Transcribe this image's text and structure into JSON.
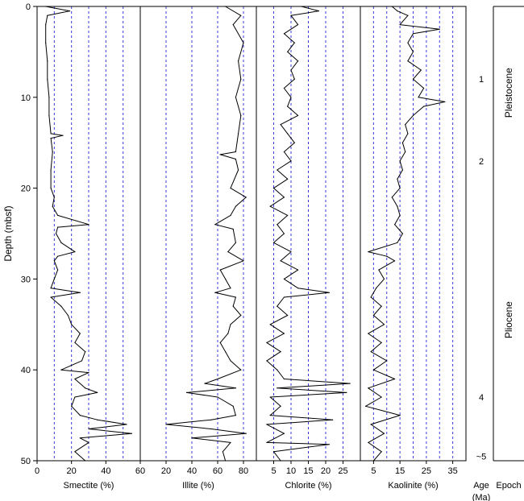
{
  "chart_data": {
    "type": "line",
    "ylabel": "Depth (mbsf)",
    "ylim": [
      50,
      0
    ],
    "yticks": [
      "0",
      "10",
      "20",
      "30",
      "40",
      "50"
    ],
    "line_color": "#000000",
    "grid_color": "#3a3adf",
    "grid_style": "dashed",
    "panels": [
      {
        "xlabel": "Smectite (%)",
        "xlim": [
          0,
          60
        ],
        "xticks": [
          "0",
          "20",
          "40",
          "60"
        ],
        "grid_x": [
          10,
          20,
          30,
          40,
          50
        ],
        "series": [
          {
            "depth": 0,
            "value": 5
          },
          {
            "depth": 0.5,
            "value": 19
          },
          {
            "depth": 1,
            "value": 6
          },
          {
            "depth": 2,
            "value": 5
          },
          {
            "depth": 4,
            "value": 5
          },
          {
            "depth": 6,
            "value": 6
          },
          {
            "depth": 8,
            "value": 6
          },
          {
            "depth": 10,
            "value": 7
          },
          {
            "depth": 12,
            "value": 7
          },
          {
            "depth": 14,
            "value": 8
          },
          {
            "depth": 14.2,
            "value": 15
          },
          {
            "depth": 14.5,
            "value": 8
          },
          {
            "depth": 16,
            "value": 9
          },
          {
            "depth": 18,
            "value": 8
          },
          {
            "depth": 20,
            "value": 8
          },
          {
            "depth": 21,
            "value": 10
          },
          {
            "depth": 22,
            "value": 9
          },
          {
            "depth": 23,
            "value": 12
          },
          {
            "depth": 24,
            "value": 30
          },
          {
            "depth": 24.3,
            "value": 12
          },
          {
            "depth": 25,
            "value": 11
          },
          {
            "depth": 26,
            "value": 14
          },
          {
            "depth": 27,
            "value": 22
          },
          {
            "depth": 27.5,
            "value": 12
          },
          {
            "depth": 28,
            "value": 10
          },
          {
            "depth": 29,
            "value": 12
          },
          {
            "depth": 30,
            "value": 10
          },
          {
            "depth": 31,
            "value": 8
          },
          {
            "depth": 31.5,
            "value": 25
          },
          {
            "depth": 32,
            "value": 8
          },
          {
            "depth": 33,
            "value": 14
          },
          {
            "depth": 34,
            "value": 18
          },
          {
            "depth": 35,
            "value": 20
          },
          {
            "depth": 36,
            "value": 25
          },
          {
            "depth": 37,
            "value": 22
          },
          {
            "depth": 38,
            "value": 28
          },
          {
            "depth": 39,
            "value": 26
          },
          {
            "depth": 40,
            "value": 14
          },
          {
            "depth": 40.3,
            "value": 30
          },
          {
            "depth": 41,
            "value": 22
          },
          {
            "depth": 42,
            "value": 28
          },
          {
            "depth": 42.5,
            "value": 35
          },
          {
            "depth": 43,
            "value": 22
          },
          {
            "depth": 44,
            "value": 20
          },
          {
            "depth": 45,
            "value": 25
          },
          {
            "depth": 45.5,
            "value": 35
          },
          {
            "depth": 46,
            "value": 52
          },
          {
            "depth": 46.5,
            "value": 30
          },
          {
            "depth": 47,
            "value": 55
          },
          {
            "depth": 47.5,
            "value": 25
          },
          {
            "depth": 48,
            "value": 30
          },
          {
            "depth": 49,
            "value": 22
          },
          {
            "depth": 50,
            "value": 28
          }
        ]
      },
      {
        "xlabel": "Illite (%)",
        "xlim": [
          0,
          90
        ],
        "xticks": [
          "20",
          "40",
          "60",
          "80"
        ],
        "grid_x": [
          20,
          40,
          60,
          80
        ],
        "series": [
          {
            "depth": 0,
            "value": 66
          },
          {
            "depth": 1,
            "value": 78
          },
          {
            "depth": 2,
            "value": 72
          },
          {
            "depth": 4,
            "value": 80
          },
          {
            "depth": 6,
            "value": 76
          },
          {
            "depth": 8,
            "value": 78
          },
          {
            "depth": 10,
            "value": 74
          },
          {
            "depth": 12,
            "value": 78
          },
          {
            "depth": 14,
            "value": 76
          },
          {
            "depth": 16,
            "value": 74
          },
          {
            "depth": 16.3,
            "value": 62
          },
          {
            "depth": 16.8,
            "value": 74
          },
          {
            "depth": 18,
            "value": 76
          },
          {
            "depth": 20,
            "value": 70
          },
          {
            "depth": 21,
            "value": 82
          },
          {
            "depth": 22,
            "value": 74
          },
          {
            "depth": 23,
            "value": 70
          },
          {
            "depth": 24,
            "value": 58
          },
          {
            "depth": 24.5,
            "value": 72
          },
          {
            "depth": 26,
            "value": 74
          },
          {
            "depth": 27,
            "value": 68
          },
          {
            "depth": 28,
            "value": 80
          },
          {
            "depth": 29,
            "value": 62
          },
          {
            "depth": 30,
            "value": 66
          },
          {
            "depth": 31,
            "value": 70
          },
          {
            "depth": 31.5,
            "value": 58
          },
          {
            "depth": 32,
            "value": 74
          },
          {
            "depth": 33,
            "value": 72
          },
          {
            "depth": 34,
            "value": 78
          },
          {
            "depth": 35,
            "value": 70
          },
          {
            "depth": 36,
            "value": 68
          },
          {
            "depth": 37,
            "value": 62
          },
          {
            "depth": 38,
            "value": 66
          },
          {
            "depth": 39,
            "value": 70
          },
          {
            "depth": 40,
            "value": 78
          },
          {
            "depth": 41,
            "value": 60
          },
          {
            "depth": 41.5,
            "value": 50
          },
          {
            "depth": 42,
            "value": 74
          },
          {
            "depth": 42.5,
            "value": 36
          },
          {
            "depth": 43,
            "value": 60
          },
          {
            "depth": 44,
            "value": 72
          },
          {
            "depth": 45,
            "value": 74
          },
          {
            "depth": 45.5,
            "value": 55
          },
          {
            "depth": 46,
            "value": 20
          },
          {
            "depth": 46.5,
            "value": 55
          },
          {
            "depth": 47,
            "value": 82
          },
          {
            "depth": 47.5,
            "value": 40
          },
          {
            "depth": 48,
            "value": 70
          },
          {
            "depth": 49,
            "value": 64
          },
          {
            "depth": 50,
            "value": 66
          }
        ]
      },
      {
        "xlabel": "Chlorite (%)",
        "xlim": [
          0,
          30
        ],
        "xticks": [
          "5",
          "10",
          "15",
          "20",
          "25"
        ],
        "grid_x": [
          5,
          10,
          15,
          20,
          25
        ],
        "series": [
          {
            "depth": 0,
            "value": 13
          },
          {
            "depth": 0.5,
            "value": 18
          },
          {
            "depth": 1,
            "value": 10
          },
          {
            "depth": 2,
            "value": 12
          },
          {
            "depth": 3,
            "value": 8
          },
          {
            "depth": 4,
            "value": 11
          },
          {
            "depth": 5,
            "value": 9
          },
          {
            "depth": 6,
            "value": 12
          },
          {
            "depth": 7,
            "value": 10
          },
          {
            "depth": 8,
            "value": 11
          },
          {
            "depth": 9,
            "value": 8
          },
          {
            "depth": 10,
            "value": 10
          },
          {
            "depth": 11,
            "value": 9
          },
          {
            "depth": 12,
            "value": 12
          },
          {
            "depth": 13,
            "value": 7
          },
          {
            "depth": 14,
            "value": 9
          },
          {
            "depth": 15,
            "value": 11
          },
          {
            "depth": 16,
            "value": 8
          },
          {
            "depth": 17,
            "value": 10
          },
          {
            "depth": 18,
            "value": 6
          },
          {
            "depth": 19,
            "value": 9
          },
          {
            "depth": 20,
            "value": 5
          },
          {
            "depth": 21,
            "value": 8
          },
          {
            "depth": 22,
            "value": 4
          },
          {
            "depth": 23,
            "value": 9
          },
          {
            "depth": 24,
            "value": 6
          },
          {
            "depth": 25,
            "value": 8
          },
          {
            "depth": 26,
            "value": 5
          },
          {
            "depth": 27,
            "value": 10
          },
          {
            "depth": 28,
            "value": 7
          },
          {
            "depth": 29,
            "value": 12
          },
          {
            "depth": 30,
            "value": 8
          },
          {
            "depth": 31,
            "value": 12
          },
          {
            "depth": 31.5,
            "value": 21
          },
          {
            "depth": 32,
            "value": 8
          },
          {
            "depth": 33,
            "value": 6
          },
          {
            "depth": 34,
            "value": 9
          },
          {
            "depth": 35,
            "value": 4
          },
          {
            "depth": 36,
            "value": 8
          },
          {
            "depth": 37,
            "value": 3
          },
          {
            "depth": 38,
            "value": 7
          },
          {
            "depth": 39,
            "value": 3
          },
          {
            "depth": 40,
            "value": 6
          },
          {
            "depth": 41,
            "value": 8
          },
          {
            "depth": 41.5,
            "value": 27
          },
          {
            "depth": 42,
            "value": 6
          },
          {
            "depth": 42.5,
            "value": 26
          },
          {
            "depth": 43,
            "value": 4
          },
          {
            "depth": 44,
            "value": 7
          },
          {
            "depth": 45,
            "value": 4
          },
          {
            "depth": 45.5,
            "value": 22
          },
          {
            "depth": 46,
            "value": 3
          },
          {
            "depth": 47,
            "value": 8
          },
          {
            "depth": 48,
            "value": 3
          },
          {
            "depth": 48.2,
            "value": 21
          },
          {
            "depth": 49,
            "value": 5
          },
          {
            "depth": 50,
            "value": 7
          }
        ]
      },
      {
        "xlabel": "Kaolinite (%)",
        "xlim": [
          0,
          40
        ],
        "xticks": [
          "5",
          "15",
          "25",
          "35"
        ],
        "grid_x": [
          5,
          10,
          15,
          20,
          25,
          30,
          35
        ],
        "series": [
          {
            "depth": 0,
            "value": 12
          },
          {
            "depth": 0.5,
            "value": 14
          },
          {
            "depth": 1,
            "value": 18
          },
          {
            "depth": 2,
            "value": 15
          },
          {
            "depth": 2.5,
            "value": 30
          },
          {
            "depth": 3,
            "value": 20
          },
          {
            "depth": 4,
            "value": 18
          },
          {
            "depth": 5,
            "value": 20
          },
          {
            "depth": 6,
            "value": 18
          },
          {
            "depth": 7,
            "value": 23
          },
          {
            "depth": 8,
            "value": 20
          },
          {
            "depth": 9,
            "value": 24
          },
          {
            "depth": 10,
            "value": 22
          },
          {
            "depth": 10.5,
            "value": 32
          },
          {
            "depth": 11,
            "value": 24
          },
          {
            "depth": 12,
            "value": 20
          },
          {
            "depth": 13,
            "value": 17
          },
          {
            "depth": 14,
            "value": 18
          },
          {
            "depth": 15,
            "value": 16
          },
          {
            "depth": 16,
            "value": 17
          },
          {
            "depth": 17,
            "value": 15
          },
          {
            "depth": 18,
            "value": 16
          },
          {
            "depth": 19,
            "value": 14
          },
          {
            "depth": 20,
            "value": 15
          },
          {
            "depth": 21,
            "value": 12
          },
          {
            "depth": 22,
            "value": 14
          },
          {
            "depth": 23,
            "value": 15
          },
          {
            "depth": 24,
            "value": 13
          },
          {
            "depth": 25,
            "value": 16
          },
          {
            "depth": 26,
            "value": 14
          },
          {
            "depth": 27,
            "value": 3
          },
          {
            "depth": 27.5,
            "value": 10
          },
          {
            "depth": 28,
            "value": 13
          },
          {
            "depth": 29,
            "value": 7
          },
          {
            "depth": 30,
            "value": 9
          },
          {
            "depth": 31,
            "value": 6
          },
          {
            "depth": 32,
            "value": 4
          },
          {
            "depth": 33,
            "value": 8
          },
          {
            "depth": 34,
            "value": 5
          },
          {
            "depth": 35,
            "value": 9
          },
          {
            "depth": 36,
            "value": 3
          },
          {
            "depth": 37,
            "value": 8
          },
          {
            "depth": 38,
            "value": 4
          },
          {
            "depth": 39,
            "value": 10
          },
          {
            "depth": 40,
            "value": 5
          },
          {
            "depth": 41,
            "value": 13
          },
          {
            "depth": 42,
            "value": 3
          },
          {
            "depth": 43,
            "value": 8
          },
          {
            "depth": 44,
            "value": 2
          },
          {
            "depth": 45,
            "value": 15
          },
          {
            "depth": 46,
            "value": 4
          },
          {
            "depth": 47,
            "value": 9
          },
          {
            "depth": 48,
            "value": 3
          },
          {
            "depth": 49,
            "value": 8
          },
          {
            "depth": 50,
            "value": 5
          }
        ]
      }
    ],
    "age": {
      "label": "Age (Ma)",
      "marks": [
        {
          "label": "1",
          "depth": 8
        },
        {
          "label": "2",
          "depth": 17
        },
        {
          "label": "4",
          "depth": 43
        },
        {
          "label": "~5",
          "depth": 49.5
        }
      ]
    },
    "epoch": {
      "label": "Epoch",
      "intervals": [
        {
          "name": "Pleistocene",
          "top": 0,
          "bottom": 19
        },
        {
          "name": "Pliocene",
          "top": 19,
          "bottom": 50
        }
      ]
    }
  }
}
